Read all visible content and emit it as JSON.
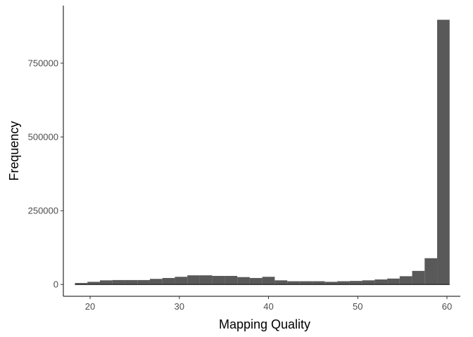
{
  "chart_data": {
    "type": "bar",
    "subtype": "histogram",
    "title": "",
    "xlabel": "Mapping Quality",
    "ylabel": "Frequency",
    "xlim": [
      17,
      61.5
    ],
    "ylim": [
      -40000,
      945000
    ],
    "x_ticks": [
      20,
      30,
      40,
      50,
      60
    ],
    "y_ticks": [
      0,
      250000,
      500000,
      750000
    ],
    "bin_width": 1.4,
    "bins": [
      {
        "x": 19.0,
        "count": 5000
      },
      {
        "x": 20.4,
        "count": 9000
      },
      {
        "x": 21.8,
        "count": 14000
      },
      {
        "x": 23.2,
        "count": 15000
      },
      {
        "x": 24.6,
        "count": 15000
      },
      {
        "x": 26.0,
        "count": 15000
      },
      {
        "x": 27.4,
        "count": 19000
      },
      {
        "x": 28.8,
        "count": 22000
      },
      {
        "x": 30.2,
        "count": 26000
      },
      {
        "x": 31.6,
        "count": 31000
      },
      {
        "x": 33.0,
        "count": 31000
      },
      {
        "x": 34.4,
        "count": 29000
      },
      {
        "x": 35.8,
        "count": 29000
      },
      {
        "x": 37.2,
        "count": 25000
      },
      {
        "x": 38.6,
        "count": 22000
      },
      {
        "x": 40.0,
        "count": 26000
      },
      {
        "x": 41.4,
        "count": 14000
      },
      {
        "x": 42.8,
        "count": 11000
      },
      {
        "x": 44.2,
        "count": 11000
      },
      {
        "x": 45.6,
        "count": 11000
      },
      {
        "x": 47.0,
        "count": 9000
      },
      {
        "x": 48.4,
        "count": 11000
      },
      {
        "x": 49.8,
        "count": 12000
      },
      {
        "x": 51.2,
        "count": 14000
      },
      {
        "x": 52.6,
        "count": 17000
      },
      {
        "x": 54.0,
        "count": 20000
      },
      {
        "x": 55.4,
        "count": 28000
      },
      {
        "x": 56.8,
        "count": 46000
      },
      {
        "x": 58.2,
        "count": 89000
      },
      {
        "x": 59.6,
        "count": 897000
      }
    ],
    "grid": false,
    "legend": "none",
    "bar_color": "#595959",
    "axis_color": "#000000",
    "tick_label_color": "#4d4d4d"
  }
}
